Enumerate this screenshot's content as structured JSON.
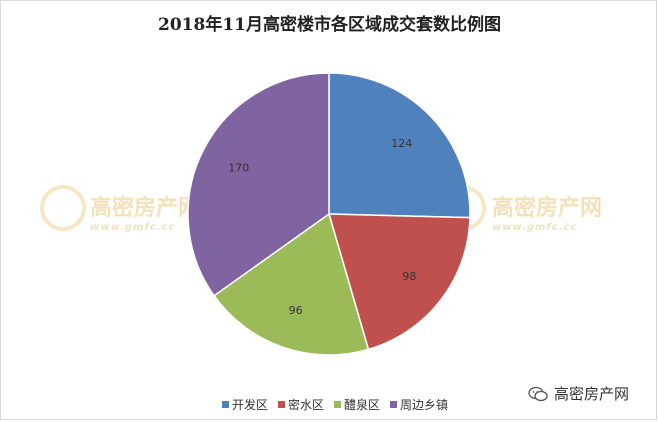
{
  "chart_data": {
    "type": "pie",
    "title": "2018年11月高密楼市各区域成交套数比例图",
    "categories": [
      "开发区",
      "密水区",
      "醴泉区",
      "周边乡镇"
    ],
    "values": [
      124,
      98,
      96,
      170
    ],
    "colors": [
      "#4f81bd",
      "#c0504d",
      "#9bbb59",
      "#8064a2"
    ],
    "legend_position": "bottom"
  },
  "watermark": {
    "text": "高密房产网",
    "url_text": "www.gmfc.cc"
  },
  "footer": {
    "wechat_account": "高密房产网",
    "wechat_icon": "wechat-icon"
  }
}
